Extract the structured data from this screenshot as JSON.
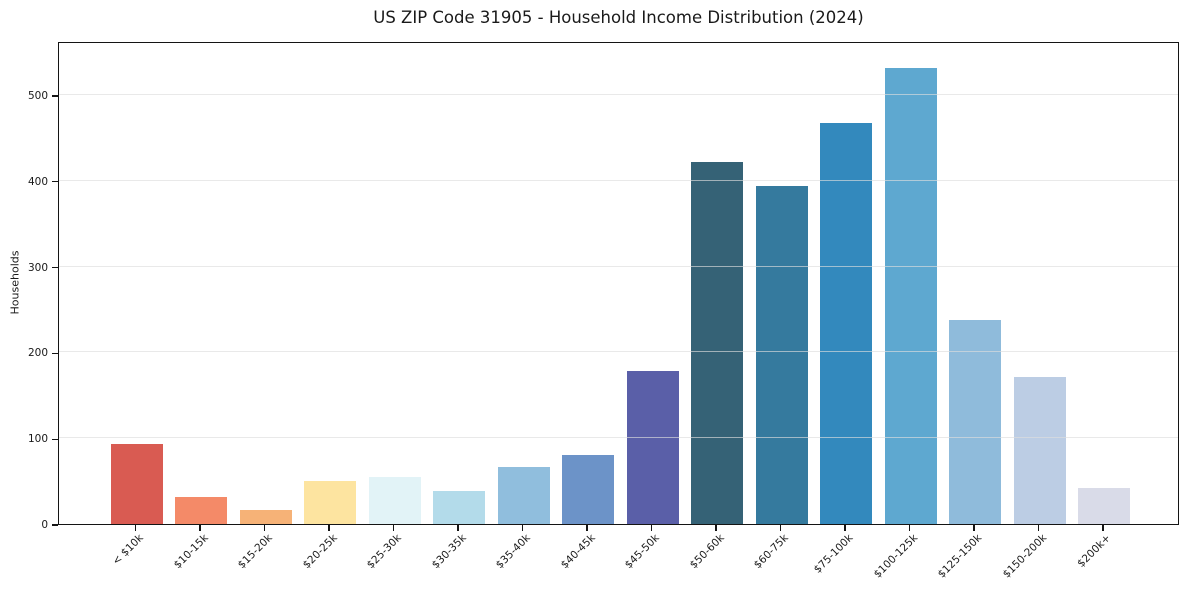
{
  "chart_data": {
    "type": "bar",
    "title": "US ZIP Code 31905 - Household Income Distribution (2024)",
    "xlabel": "",
    "ylabel": "Households",
    "categories": [
      "< $10k",
      "$10-15k",
      "$15-20k",
      "$20-25k",
      "$25-30k",
      "$30-35k",
      "$35-40k",
      "$40-45k",
      "$45-50k",
      "$50-60k",
      "$60-75k",
      "$75-100k",
      "$100-125k",
      "$125-150k",
      "$150-200k",
      "$200k+"
    ],
    "values": [
      93,
      32,
      16,
      50,
      55,
      38,
      67,
      80,
      178,
      422,
      394,
      468,
      531,
      238,
      171,
      42
    ],
    "bar_colors": [
      "#d95b52",
      "#f48a68",
      "#f6b277",
      "#fde4a0",
      "#e2f3f7",
      "#b3dbea",
      "#90bedd",
      "#6c93c8",
      "#5a5fa8",
      "#356276",
      "#357a9e",
      "#3389bd",
      "#5ea8d0",
      "#8fbbdb",
      "#bccde4",
      "#d9dbe8"
    ],
    "yticks": [
      0,
      100,
      200,
      300,
      400,
      500
    ],
    "ylim": [
      0,
      563
    ],
    "grid": "horizontal",
    "x_tick_rotation": 45,
    "legend": "none"
  }
}
